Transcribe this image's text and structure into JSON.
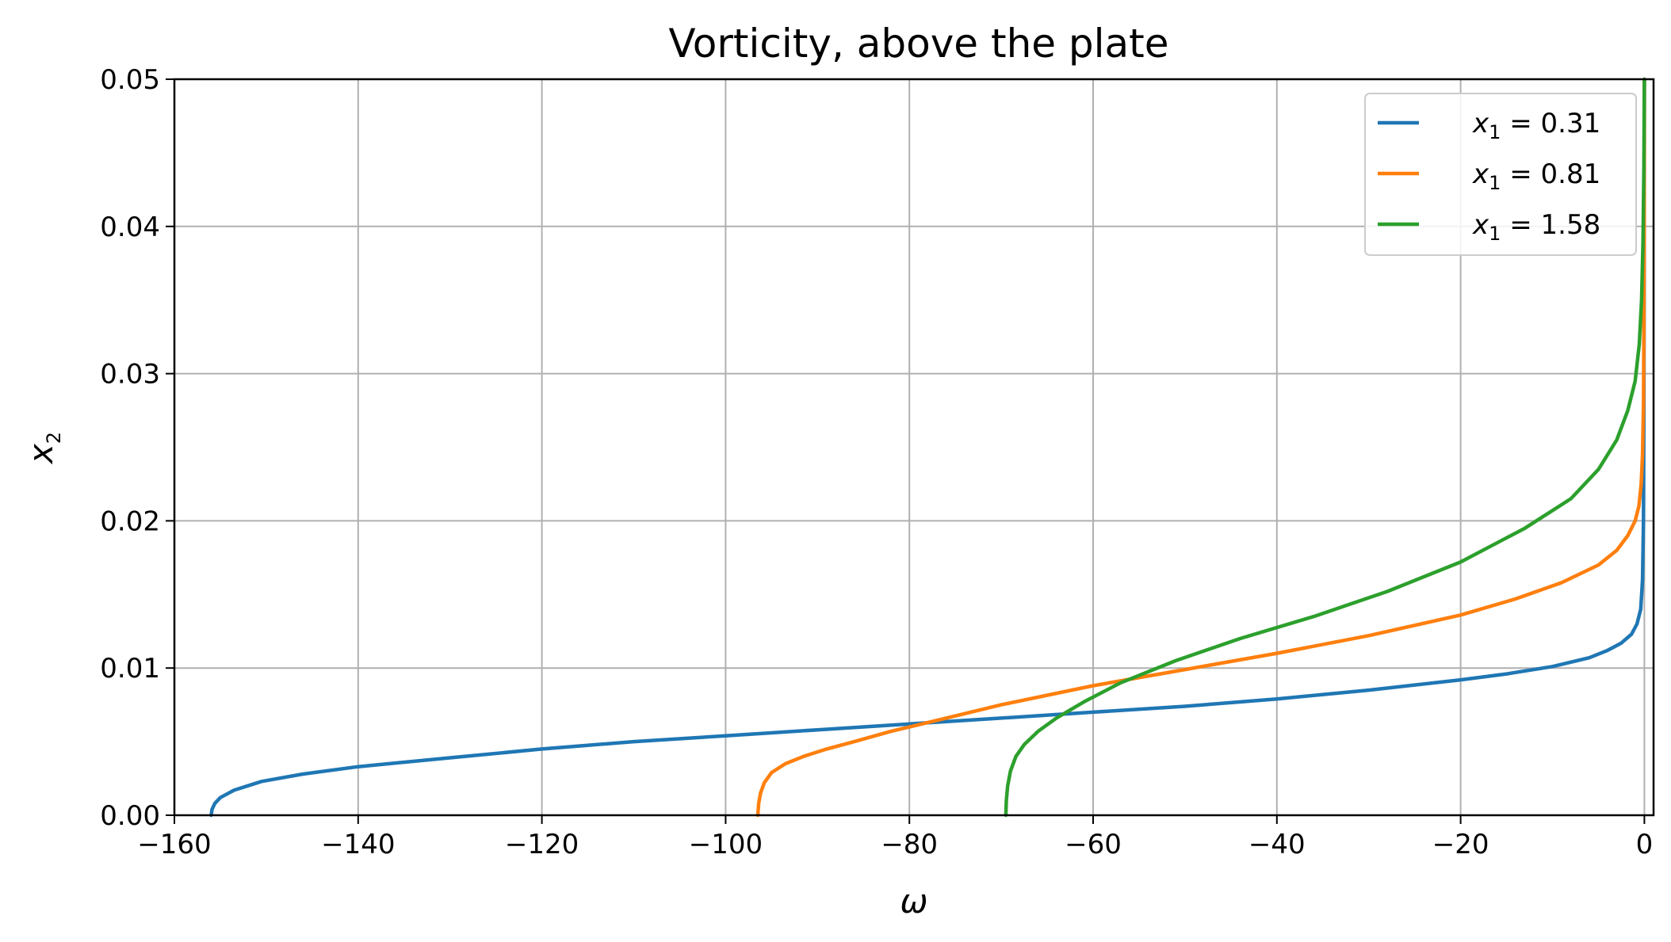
{
  "chart_data": {
    "type": "line",
    "title": "Vorticity, above the plate",
    "xlabel": "ω",
    "ylabel": {
      "base": "x",
      "sub": "2"
    },
    "xlim": [
      -160,
      1
    ],
    "ylim": [
      0,
      0.05
    ],
    "xticks": [
      -160,
      -140,
      -120,
      -100,
      -80,
      -60,
      -40,
      -20,
      0
    ],
    "xtick_labels": [
      "−160",
      "−140",
      "−120",
      "−100",
      "−80",
      "−60",
      "−40",
      "−20",
      "0"
    ],
    "yticks": [
      0,
      0.01,
      0.02,
      0.03,
      0.04,
      0.05
    ],
    "ytick_labels": [
      "0.00",
      "0.01",
      "0.02",
      "0.03",
      "0.04",
      "0.05"
    ],
    "grid": true,
    "legend_position": "top-right",
    "series": [
      {
        "name": "x₁ = 0.31",
        "legend_base": "x",
        "legend_sub": "1",
        "legend_rest": " = 0.31",
        "color": "#1f77b4",
        "x": [
          -156,
          -155.9,
          -155.6,
          -155.0,
          -153.5,
          -150.5,
          -146,
          -140,
          -130,
          -120,
          -110,
          -100,
          -90,
          -80,
          -70,
          -60,
          -50,
          -40,
          -30,
          -20,
          -15,
          -10,
          -6,
          -4,
          -2.5,
          -1.4,
          -0.8,
          -0.4,
          -0.2,
          -0.1,
          -0.05,
          -0.02,
          0
        ],
        "y": [
          0,
          0.0004,
          0.0008,
          0.0012,
          0.0017,
          0.0023,
          0.0028,
          0.0033,
          0.0039,
          0.0045,
          0.005,
          0.0054,
          0.0058,
          0.0062,
          0.0066,
          0.007,
          0.0074,
          0.0079,
          0.0085,
          0.0092,
          0.0096,
          0.0101,
          0.0107,
          0.0112,
          0.0117,
          0.0123,
          0.013,
          0.014,
          0.016,
          0.02,
          0.028,
          0.038,
          0.05
        ]
      },
      {
        "name": "x₁ = 0.81",
        "legend_base": "x",
        "legend_sub": "1",
        "legend_rest": " = 0.81",
        "color": "#ff7f0e",
        "x": [
          -96.5,
          -96.4,
          -96.2,
          -95.8,
          -95,
          -93.5,
          -91.5,
          -89,
          -86,
          -82,
          -76,
          -70,
          -60,
          -50,
          -40,
          -30,
          -20,
          -14,
          -9,
          -5,
          -3,
          -1.8,
          -1,
          -0.6,
          -0.35,
          -0.2,
          -0.1,
          -0.05,
          -0.02,
          0
        ],
        "y": [
          0,
          0.0008,
          0.0015,
          0.0022,
          0.0029,
          0.0035,
          0.004,
          0.0045,
          0.005,
          0.0057,
          0.0066,
          0.0075,
          0.0088,
          0.0099,
          0.011,
          0.0122,
          0.0136,
          0.0147,
          0.0158,
          0.017,
          0.018,
          0.019,
          0.02,
          0.021,
          0.0225,
          0.0245,
          0.028,
          0.033,
          0.04,
          0.05
        ]
      },
      {
        "name": "x₁ = 1.58",
        "legend_base": "x",
        "legend_sub": "1",
        "legend_rest": " = 1.58",
        "color": "#2ca02c",
        "x": [
          -69.5,
          -69.45,
          -69.3,
          -69.0,
          -68.4,
          -67.5,
          -66,
          -64,
          -61,
          -57,
          -51,
          -44,
          -36,
          -28,
          -20,
          -13,
          -8,
          -5,
          -3,
          -1.8,
          -1.0,
          -0.55,
          -0.3,
          -0.15,
          -0.05,
          0
        ],
        "y": [
          0,
          0.001,
          0.002,
          0.003,
          0.004,
          0.0048,
          0.0057,
          0.0066,
          0.0077,
          0.009,
          0.0105,
          0.012,
          0.0135,
          0.0152,
          0.0172,
          0.0195,
          0.0215,
          0.0235,
          0.0255,
          0.0275,
          0.0295,
          0.032,
          0.035,
          0.039,
          0.044,
          0.05
        ]
      }
    ]
  }
}
